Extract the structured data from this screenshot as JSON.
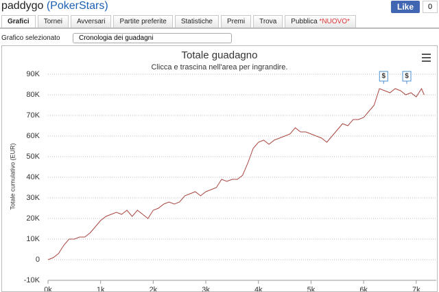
{
  "header": {
    "user": "paddygo",
    "site": "(PokerStars)",
    "like": "Like",
    "like_count": "0"
  },
  "tabs": [
    "Grafici",
    "Tornei",
    "Avversari",
    "Partite preferite",
    "Statistiche",
    "Premi",
    "Trova",
    "Pubblica"
  ],
  "tab_badge": "*NUOVO*",
  "selector": {
    "label": "Grafico selezionato",
    "value": "Cronologia dei guadagni"
  },
  "chart_data": {
    "type": "line",
    "title": "Totale guadagno",
    "subtitle": "Clicca e trascina nell'area per ingrandire.",
    "y_label": "Totale cumulativo (EUR)",
    "xlim": [
      0,
      7250
    ],
    "ylim": [
      -10000,
      90000
    ],
    "grid": true,
    "xticks": [
      {
        "value": 0,
        "label": "0k"
      },
      {
        "value": 1000,
        "label": "1k"
      },
      {
        "value": 2000,
        "label": "2k"
      },
      {
        "value": 3000,
        "label": "3k"
      },
      {
        "value": 4000,
        "label": "4k"
      },
      {
        "value": 5000,
        "label": "5k"
      },
      {
        "value": 6000,
        "label": "6k"
      },
      {
        "value": 7000,
        "label": "7k"
      }
    ],
    "yticks": [
      {
        "value": -10000,
        "label": "-10K"
      },
      0,
      {
        "value": 10000,
        "label": "10K"
      },
      {
        "value": 20000,
        "label": "20K"
      },
      {
        "value": 30000,
        "label": "30K"
      },
      {
        "value": 40000,
        "label": "40K"
      },
      {
        "value": 50000,
        "label": "50K"
      },
      {
        "value": 60000,
        "label": "60K"
      },
      {
        "value": 70000,
        "label": "70K"
      },
      {
        "value": 80000,
        "label": "80K"
      },
      {
        "value": 90000,
        "label": "90K"
      }
    ],
    "series": [
      {
        "color": "#a8453e",
        "x": [
          0,
          100,
          200,
          300,
          400,
          500,
          600,
          700,
          800,
          900,
          1000,
          1100,
          1200,
          1300,
          1400,
          1500,
          1600,
          1700,
          1800,
          1900,
          2000,
          2100,
          2200,
          2300,
          2400,
          2500,
          2600,
          2700,
          2800,
          2900,
          3000,
          3100,
          3200,
          3300,
          3400,
          3500,
          3600,
          3700,
          3800,
          3900,
          4000,
          4100,
          4200,
          4300,
          4400,
          4500,
          4600,
          4700,
          4800,
          4900,
          5000,
          5100,
          5200,
          5300,
          5400,
          5500,
          5600,
          5700,
          5800,
          5900,
          6000,
          6100,
          6200,
          6300,
          6400,
          6500,
          6600,
          6700,
          6800,
          6900,
          7000,
          7100,
          7150
        ],
        "values": [
          0,
          1000,
          3000,
          7000,
          10000,
          10000,
          11000,
          11000,
          13000,
          16000,
          19000,
          21000,
          22000,
          23000,
          22000,
          24000,
          21000,
          24000,
          22000,
          20000,
          24000,
          25000,
          27000,
          28000,
          27000,
          28000,
          31000,
          32000,
          33000,
          31000,
          33000,
          34000,
          35000,
          39000,
          38000,
          39000,
          39000,
          41000,
          47000,
          54000,
          57000,
          58000,
          56000,
          58000,
          59000,
          60000,
          61000,
          64000,
          62000,
          62000,
          61000,
          60000,
          59000,
          57000,
          60000,
          63000,
          66000,
          65000,
          68000,
          68000,
          69000,
          72000,
          75000,
          83000,
          82000,
          81000,
          83000,
          82000,
          80000,
          81000,
          79000,
          83000,
          80000
        ]
      }
    ],
    "flags": [
      {
        "x": 6380,
        "label": "$"
      },
      {
        "x": 6820,
        "label": "$"
      }
    ]
  }
}
